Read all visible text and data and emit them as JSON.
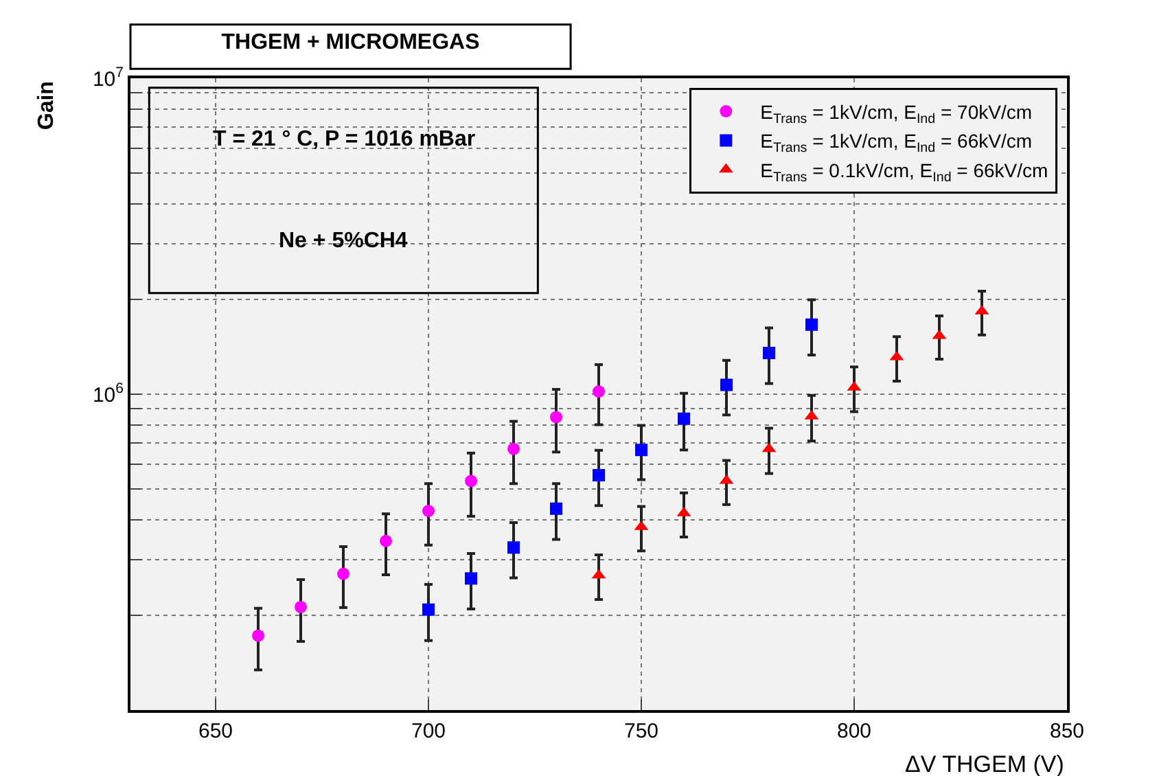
{
  "chart_data": {
    "type": "scatter",
    "title": "THGEM + MICROMEGAS",
    "xlabel": "ΔV THGEM (V)",
    "ylabel": "Gain",
    "annotations": [
      "T = 21 ° C, P = 1016 mBar",
      "Ne + 5%CH4"
    ],
    "log": "y",
    "grid": true,
    "legend": "top right",
    "xlim": [
      630,
      850
    ],
    "xticks": [
      650,
      700,
      750,
      800,
      850
    ],
    "ylim": [
      100000,
      10000000
    ],
    "yticks": [
      {
        "value": 200000,
        "label": null
      },
      {
        "value": 300000,
        "label": null
      },
      {
        "value": 400000,
        "label": null
      },
      {
        "value": 500000,
        "label": null
      },
      {
        "value": 600000,
        "label": null
      },
      {
        "value": 700000,
        "label": null
      },
      {
        "value": 800000,
        "label": null
      },
      {
        "value": 900000,
        "label": null
      },
      {
        "value": 1000000,
        "label": "10$^{6}$"
      },
      {
        "value": 2000000,
        "label": null
      },
      {
        "value": 3000000,
        "label": null
      },
      {
        "value": 4000000,
        "label": null
      },
      {
        "value": 5000000,
        "label": null
      },
      {
        "value": 6000000,
        "label": null
      },
      {
        "value": 7000000,
        "label": null
      },
      {
        "value": 8000000,
        "label": null
      },
      {
        "value": 9000000,
        "label": null
      },
      {
        "value": 10000000,
        "label": "10$^{7}$"
      }
    ],
    "series": [
      {
        "name": "E$_{Trans}$ = 1kV/cm, E$_{Ind}$ = 70kV/cm",
        "color": "#ff00ff",
        "marker": "circle",
        "x": [
          660,
          670,
          680,
          690,
          700,
          710,
          720,
          730,
          740
        ],
        "values": [
          172000,
          212000,
          270000,
          343000,
          427000,
          531000,
          671000,
          846000,
          1020000
        ],
        "errors": [
          38000,
          47000,
          59000,
          75000,
          94000,
          120000,
          150000,
          190000,
          220000
        ]
      },
      {
        "name": "E$_{Trans}$ = 1kV/cm, E$_{Ind}$ = 66kV/cm",
        "color": "#0000ff",
        "marker": "square",
        "x": [
          700,
          710,
          720,
          730,
          740,
          750,
          760,
          770,
          780,
          790
        ],
        "values": [
          208000,
          261000,
          327000,
          434000,
          554000,
          666000,
          836000,
          1070000,
          1350000,
          1660000
        ],
        "errors": [
          42000,
          52000,
          65000,
          87000,
          110000,
          130000,
          170000,
          210000,
          270000,
          330000
        ]
      },
      {
        "name": "E$_{Trans}$ = 0.1kV/cm, E$_{Ind}$ = 66kV/cm",
        "color": "#ff0000",
        "marker": "triangle",
        "x": [
          740,
          750,
          760,
          770,
          780,
          790,
          800,
          810,
          820,
          830
        ],
        "values": [
          267000,
          380000,
          420000,
          532000,
          671000,
          851000,
          1050000,
          1310000,
          1530000,
          1830000
        ],
        "errors": [
          43000,
          61000,
          67000,
          85000,
          110000,
          140000,
          170000,
          210000,
          240000,
          290000
        ]
      }
    ]
  }
}
